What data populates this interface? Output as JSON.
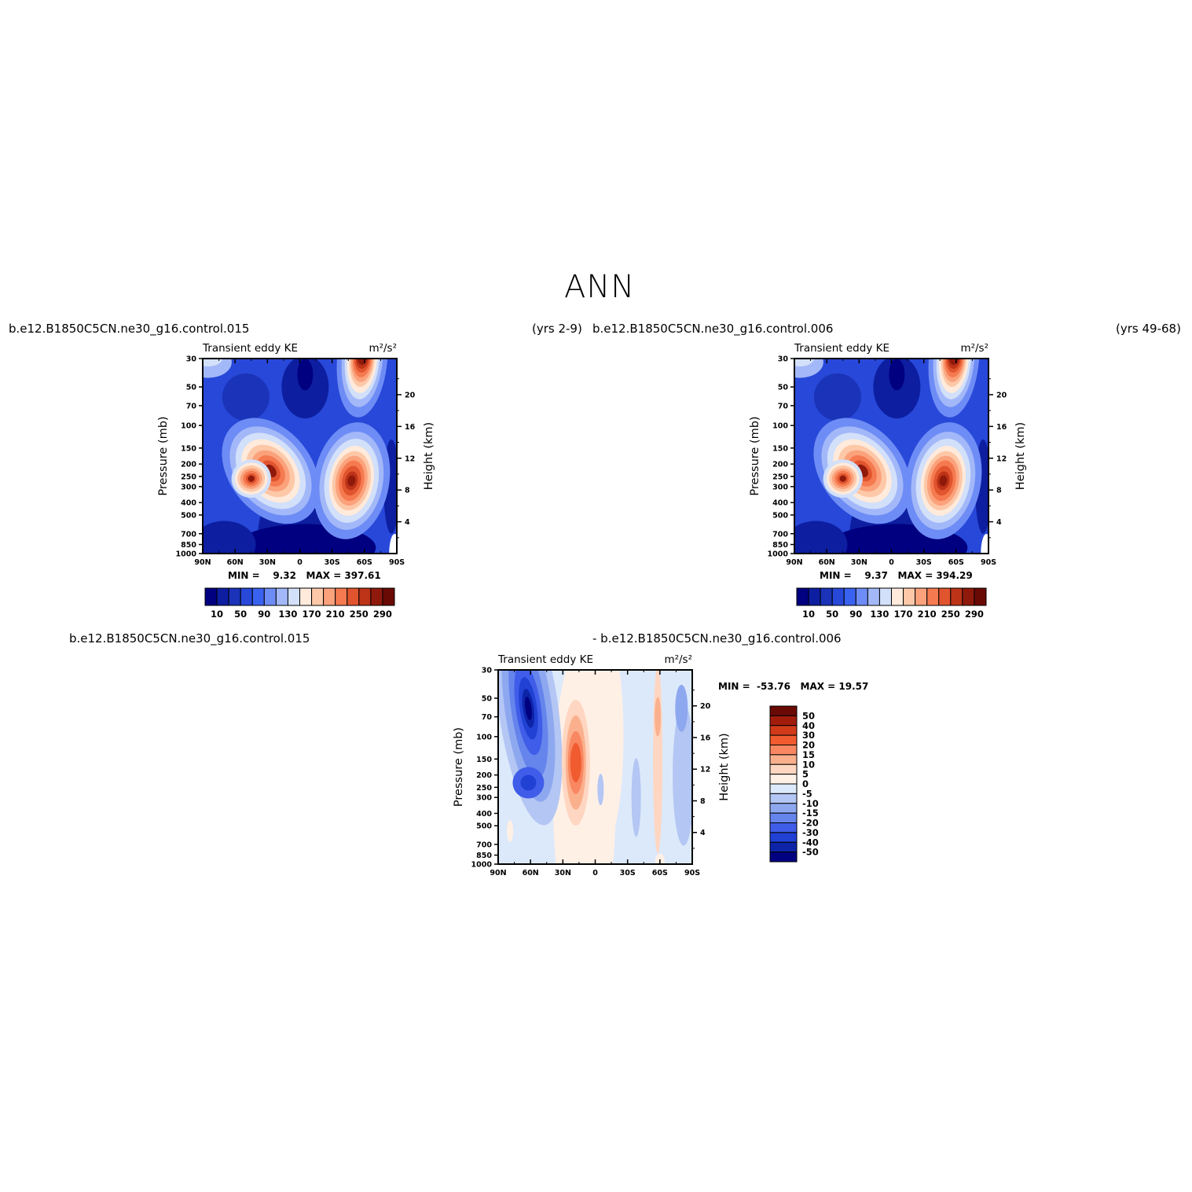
{
  "figure": {
    "title": "ANN",
    "top_left_case": "b.e12.B1850C5CN.ne30_g16.control.015",
    "top_left_years": "(yrs 2-9)",
    "top_right_case": "b.e12.B1850C5CN.ne30_g16.control.006",
    "top_right_years": "(yrs 49-68)",
    "bottom_case_a": "b.e12.B1850C5CN.ne30_g16.control.015",
    "bottom_case_b": "- b.e12.B1850C5CN.ne30_g16.control.006"
  },
  "chart_data": [
    {
      "type": "heatmap",
      "title": "Transient eddy KE",
      "units": "m²/s²",
      "xlabel": "",
      "ylabel": "Pressure (mb)",
      "ylabel_right": "Height (km)",
      "x_ticks": [
        "90N",
        "60N",
        "30N",
        "0",
        "30S",
        "60S",
        "90S"
      ],
      "y_ticks": [
        "30",
        "50",
        "70",
        "100",
        "150",
        "200",
        "250",
        "300",
        "400",
        "500",
        "700",
        "850",
        "1000"
      ],
      "y_right_ticks": [
        "20",
        "16",
        "12",
        "8",
        "4"
      ],
      "stats": {
        "min_label": "MIN =",
        "min": "9.32",
        "max_label": "MAX =",
        "max": "397.61"
      },
      "colorbar_labels": [
        "10",
        "50",
        "90",
        "130",
        "170",
        "210",
        "250",
        "290"
      ],
      "features": [
        {
          "lat": 25,
          "p": 220,
          "value": 397.61
        },
        {
          "lat": -50,
          "p": 260,
          "value": 370
        },
        {
          "lat": -62,
          "p": 30,
          "value": 320
        }
      ]
    },
    {
      "type": "heatmap",
      "title": "Transient eddy KE",
      "units": "m²/s²",
      "xlabel": "",
      "ylabel": "Pressure (mb)",
      "ylabel_right": "Height (km)",
      "x_ticks": [
        "90N",
        "60N",
        "30N",
        "0",
        "30S",
        "60S",
        "90S"
      ],
      "y_ticks": [
        "30",
        "50",
        "70",
        "100",
        "150",
        "200",
        "250",
        "300",
        "400",
        "500",
        "700",
        "850",
        "1000"
      ],
      "y_right_ticks": [
        "20",
        "16",
        "12",
        "8",
        "4"
      ],
      "stats": {
        "min_label": "MIN =",
        "min": "9.37",
        "max_label": "MAX =",
        "max": "394.29"
      },
      "colorbar_labels": [
        "10",
        "50",
        "90",
        "130",
        "170",
        "210",
        "250",
        "290"
      ],
      "features": [
        {
          "lat": 25,
          "p": 220,
          "value": 394.29
        },
        {
          "lat": -50,
          "p": 260,
          "value": 375
        },
        {
          "lat": -62,
          "p": 30,
          "value": 320
        }
      ]
    },
    {
      "type": "heatmap",
      "title": "Transient eddy KE",
      "units": "m²/s²",
      "xlabel": "",
      "ylabel": "Pressure (mb)",
      "ylabel_right": "Height (km)",
      "x_ticks": [
        "90N",
        "60N",
        "30N",
        "0",
        "30S",
        "60S",
        "90S"
      ],
      "y_ticks": [
        "30",
        "50",
        "70",
        "100",
        "150",
        "200",
        "250",
        "300",
        "400",
        "500",
        "700",
        "850",
        "1000"
      ],
      "y_right_ticks": [
        "20",
        "16",
        "12",
        "8",
        "4"
      ],
      "stats": {
        "min_label": "MIN =",
        "min": "-53.76",
        "max_label": "MAX =",
        "max": "19.57"
      },
      "colorbar_labels": [
        "50",
        "40",
        "30",
        "20",
        "15",
        "10",
        "5",
        "0",
        "-5",
        "-10",
        "-15",
        "-20",
        "-30",
        "-40",
        "-50"
      ],
      "features": [
        {
          "lat": 60,
          "p": 40,
          "value": -53.76
        },
        {
          "lat": 22,
          "p": 140,
          "value": 19.57
        },
        {
          "lat": -60,
          "p": 80,
          "value": 10
        }
      ]
    }
  ],
  "colors": {
    "sequential": [
      "#000080",
      "#0d1ea0",
      "#1a33b8",
      "#2748d8",
      "#3a62f0",
      "#6e8cf5",
      "#a3b8f8",
      "#d2e0fa",
      "#ffeadb",
      "#fdc8a8",
      "#fba27c",
      "#f57a50",
      "#e0542e",
      "#bd3317",
      "#8f1a0c",
      "#6a0a05"
    ],
    "diverging": [
      "#6a0a05",
      "#a21c0c",
      "#d23b1a",
      "#f05b2f",
      "#f98761",
      "#fbb08d",
      "#fed6c1",
      "#fff0e6",
      "#dce9fa",
      "#b3c6f4",
      "#8ea8f0",
      "#6584ec",
      "#3f5de8",
      "#2041d4",
      "#0d24a8",
      "#000080"
    ]
  }
}
